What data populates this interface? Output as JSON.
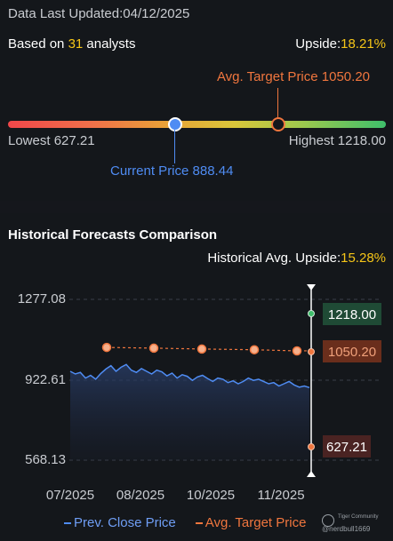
{
  "header": {
    "updated_label": "Data Last Updated:",
    "updated_date": "04/12/2025",
    "based_prefix": "Based on ",
    "analyst_count": "31",
    "based_suffix": " analysts",
    "upside_label": "Upside:",
    "upside_value": "18.21%"
  },
  "price_range": {
    "target_label": "Avg. Target Price 1050.20",
    "lowest_label": "Lowest 627.21",
    "highest_label": "Highest 1218.00",
    "current_label": "Current Price 888.44",
    "lowest": 627.21,
    "highest": 1218.0,
    "current": 888.44,
    "target": 1050.2
  },
  "historical": {
    "title": "Historical Forecasts Comparison",
    "upside_label": "Historical Avg. Upside:",
    "upside_value": "15.28%"
  },
  "chart_data": {
    "type": "line",
    "y_ticks": [
      "1277.08",
      "922.61",
      "568.13"
    ],
    "x_ticks": [
      "07/2025",
      "08/2025",
      "10/2025",
      "11/2025"
    ],
    "ylim": [
      568.13,
      1277.08
    ],
    "series": [
      {
        "name": "Prev. Close Price",
        "values": [
          960,
          948,
          955,
          930,
          942,
          925,
          950,
          970,
          985,
          960,
          978,
          990,
          965,
          955,
          972,
          960,
          948,
          965,
          958,
          940,
          952,
          930,
          945,
          938,
          920,
          935,
          942,
          928,
          915,
          930,
          925,
          910,
          918,
          905,
          915,
          930,
          920,
          925,
          915,
          905,
          910,
          895,
          905,
          915,
          900,
          890,
          895,
          888
        ]
      },
      {
        "name": "Avg. Target Price",
        "points": [
          1065,
          1062,
          1058,
          1055,
          1050
        ]
      }
    ],
    "right_labels": [
      {
        "text": "1218.00",
        "value": 1218.0
      },
      {
        "text": "1050.20",
        "value": 1050.2
      },
      {
        "text": "627.21",
        "value": 627.21
      }
    ]
  },
  "legend": {
    "close_label": "Prev. Close Price",
    "target_label": "Avg. Target Price"
  },
  "watermark": {
    "top": "Tiger Community",
    "bottom": "@nerdbull1669"
  },
  "colors": {
    "accent_blue": "#4f8cf3",
    "accent_orange": "#f0763e",
    "accent_yellow": "#f5c518",
    "green": "#3fbf6b",
    "red": "#f0474a"
  }
}
